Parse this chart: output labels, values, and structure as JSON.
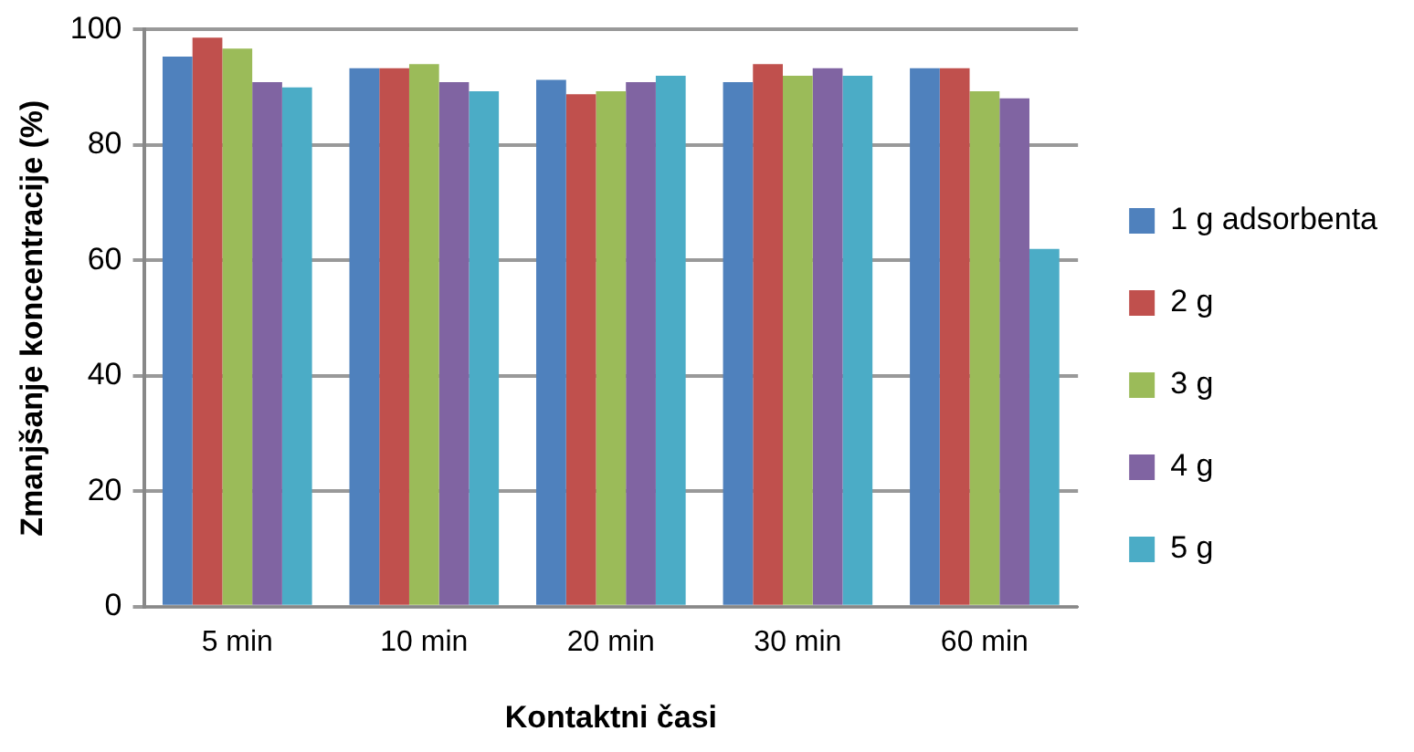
{
  "chart_data": {
    "type": "bar",
    "xlabel": "Kontaktni časi",
    "ylabel": "Zmanjšanje koncentracije (%)",
    "categories": [
      "5 min",
      "10 min",
      "20 min",
      "30 min",
      "60 min"
    ],
    "series": [
      {
        "name": "1 g adsorbenta",
        "color": "#4f81bd",
        "values": [
          95.3,
          93.3,
          91.3,
          90.9,
          93.3
        ]
      },
      {
        "name": "2 g",
        "color": "#c0504d",
        "values": [
          98.6,
          93.3,
          88.8,
          94,
          93.3
        ]
      },
      {
        "name": "3 g",
        "color": "#9bbb59",
        "values": [
          96.7,
          94,
          89.3,
          92,
          89.3
        ]
      },
      {
        "name": "4 g",
        "color": "#8064a2",
        "values": [
          90.9,
          90.9,
          90.9,
          93.3,
          88.1
        ]
      },
      {
        "name": "5 g",
        "color": "#4bacc6",
        "values": [
          90,
          89.3,
          92,
          92,
          62
        ]
      }
    ],
    "ylim": [
      0,
      100
    ],
    "yticks": [
      0,
      20,
      40,
      60,
      80,
      100
    ],
    "grid": "y",
    "legend": "right"
  }
}
